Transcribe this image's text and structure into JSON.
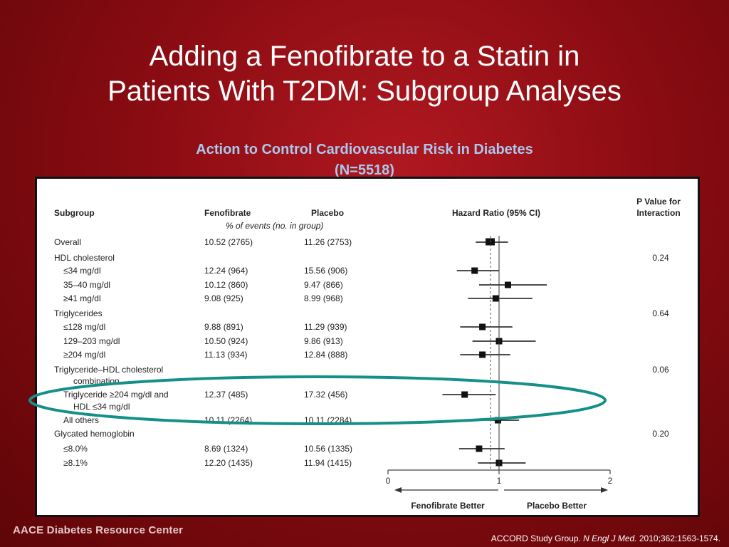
{
  "slide": {
    "title_line1": "Adding a Fenofibrate to a Statin in",
    "title_line2": "Patients With T2DM: Subgroup Analyses",
    "subtitle_line1": "Action to Control Cardiovascular Risk in Diabetes",
    "subtitle_line2": "(N=5518)",
    "footer_left": "AACE Diabetes Resource Center",
    "citation_prefix": "ACCORD Study Group. ",
    "citation_journal": "N Engl J Med.",
    "citation_suffix": " 2010;362:1563-1574."
  },
  "headers": {
    "subgroup": "Subgroup",
    "fenofibrate": "Fenofibrate",
    "placebo": "Placebo",
    "events_note": "% of events (no. in group)",
    "hazard": "Hazard Ratio (95% CI)",
    "pvalue_line1": "P Value for",
    "pvalue_line2": "Interaction"
  },
  "axis": {
    "ticks": [
      "0",
      "1",
      "2"
    ],
    "left_label": "Fenofibrate Better",
    "right_label": "Placebo Better"
  },
  "chart_data": {
    "type": "forest",
    "xlim": [
      0,
      2
    ],
    "reference_line": 1,
    "rows": [
      {
        "label": "Overall",
        "indent": 0,
        "fenofibrate": "10.52 (2765)",
        "placebo": "11.26 (2753)",
        "hr": 0.92,
        "lo": 0.79,
        "hi": 1.08,
        "p": ""
      },
      {
        "label": "HDL cholesterol",
        "indent": 0,
        "fenofibrate": "",
        "placebo": "",
        "hr": null,
        "lo": null,
        "hi": null,
        "p": "0.24"
      },
      {
        "label": "≤34 mg/dl",
        "indent": 1,
        "fenofibrate": "12.24 (964)",
        "placebo": "15.56 (906)",
        "hr": 0.78,
        "lo": 0.62,
        "hi": 1.0,
        "p": ""
      },
      {
        "label": "35–40 mg/dl",
        "indent": 1,
        "fenofibrate": "10.12 (860)",
        "placebo": "9.47 (866)",
        "hr": 1.08,
        "lo": 0.82,
        "hi": 1.43,
        "p": ""
      },
      {
        "label": "≥41 mg/dl",
        "indent": 1,
        "fenofibrate": "9.08 (925)",
        "placebo": "8.99 (968)",
        "hr": 0.97,
        "lo": 0.72,
        "hi": 1.3,
        "p": ""
      },
      {
        "label": "Triglycerides",
        "indent": 0,
        "fenofibrate": "",
        "placebo": "",
        "hr": null,
        "lo": null,
        "hi": null,
        "p": "0.64"
      },
      {
        "label": "≤128 mg/dl",
        "indent": 1,
        "fenofibrate": "9.88 (891)",
        "placebo": "11.29 (939)",
        "hr": 0.85,
        "lo": 0.65,
        "hi": 1.12,
        "p": ""
      },
      {
        "label": "129–203 mg/dl",
        "indent": 1,
        "fenofibrate": "10.50 (924)",
        "placebo": "9.86 (913)",
        "hr": 1.0,
        "lo": 0.76,
        "hi": 1.33,
        "p": ""
      },
      {
        "label": "≥204 mg/dl",
        "indent": 1,
        "fenofibrate": "11.13 (934)",
        "placebo": "12.84 (888)",
        "hr": 0.85,
        "lo": 0.65,
        "hi": 1.1,
        "p": ""
      },
      {
        "label": "Triglyceride–HDL cholesterol",
        "indent": 0,
        "fenofibrate": "",
        "placebo": "",
        "hr": null,
        "lo": null,
        "hi": null,
        "p": "0.06"
      },
      {
        "label": "combination",
        "indent": 2,
        "fenofibrate": "",
        "placebo": "",
        "hr": null,
        "lo": null,
        "hi": null,
        "p": ""
      },
      {
        "label": "Triglyceride ≥204 mg/dl and",
        "indent": 1,
        "fenofibrate": "12.37 (485)",
        "placebo": "17.32 (456)",
        "hr": 0.69,
        "lo": 0.49,
        "hi": 0.97,
        "p": ""
      },
      {
        "label": "HDL ≤34 mg/dl",
        "indent": 2,
        "fenofibrate": "",
        "placebo": "",
        "hr": null,
        "lo": null,
        "hi": null,
        "p": ""
      },
      {
        "label": "All others",
        "indent": 1,
        "fenofibrate": "10.11 (2264)",
        "placebo": "10.11 (2284)",
        "hr": 0.99,
        "lo": 0.83,
        "hi": 1.18,
        "p": ""
      },
      {
        "label": "Glycated hemoglobin",
        "indent": 0,
        "fenofibrate": "",
        "placebo": "",
        "hr": null,
        "lo": null,
        "hi": null,
        "p": "0.20"
      },
      {
        "label": "≤8.0%",
        "indent": 1,
        "fenofibrate": "8.69 (1324)",
        "placebo": "10.56 (1335)",
        "hr": 0.82,
        "lo": 0.64,
        "hi": 1.05,
        "p": ""
      },
      {
        "label": "≥8.1%",
        "indent": 1,
        "fenofibrate": "12.20 (1435)",
        "placebo": "11.94 (1415)",
        "hr": 1.0,
        "lo": 0.81,
        "hi": 1.24,
        "p": ""
      }
    ]
  },
  "colors": {
    "highlight_ring": "#159089",
    "subtitle": "#a9c8ee",
    "background": "#8a0c12"
  }
}
